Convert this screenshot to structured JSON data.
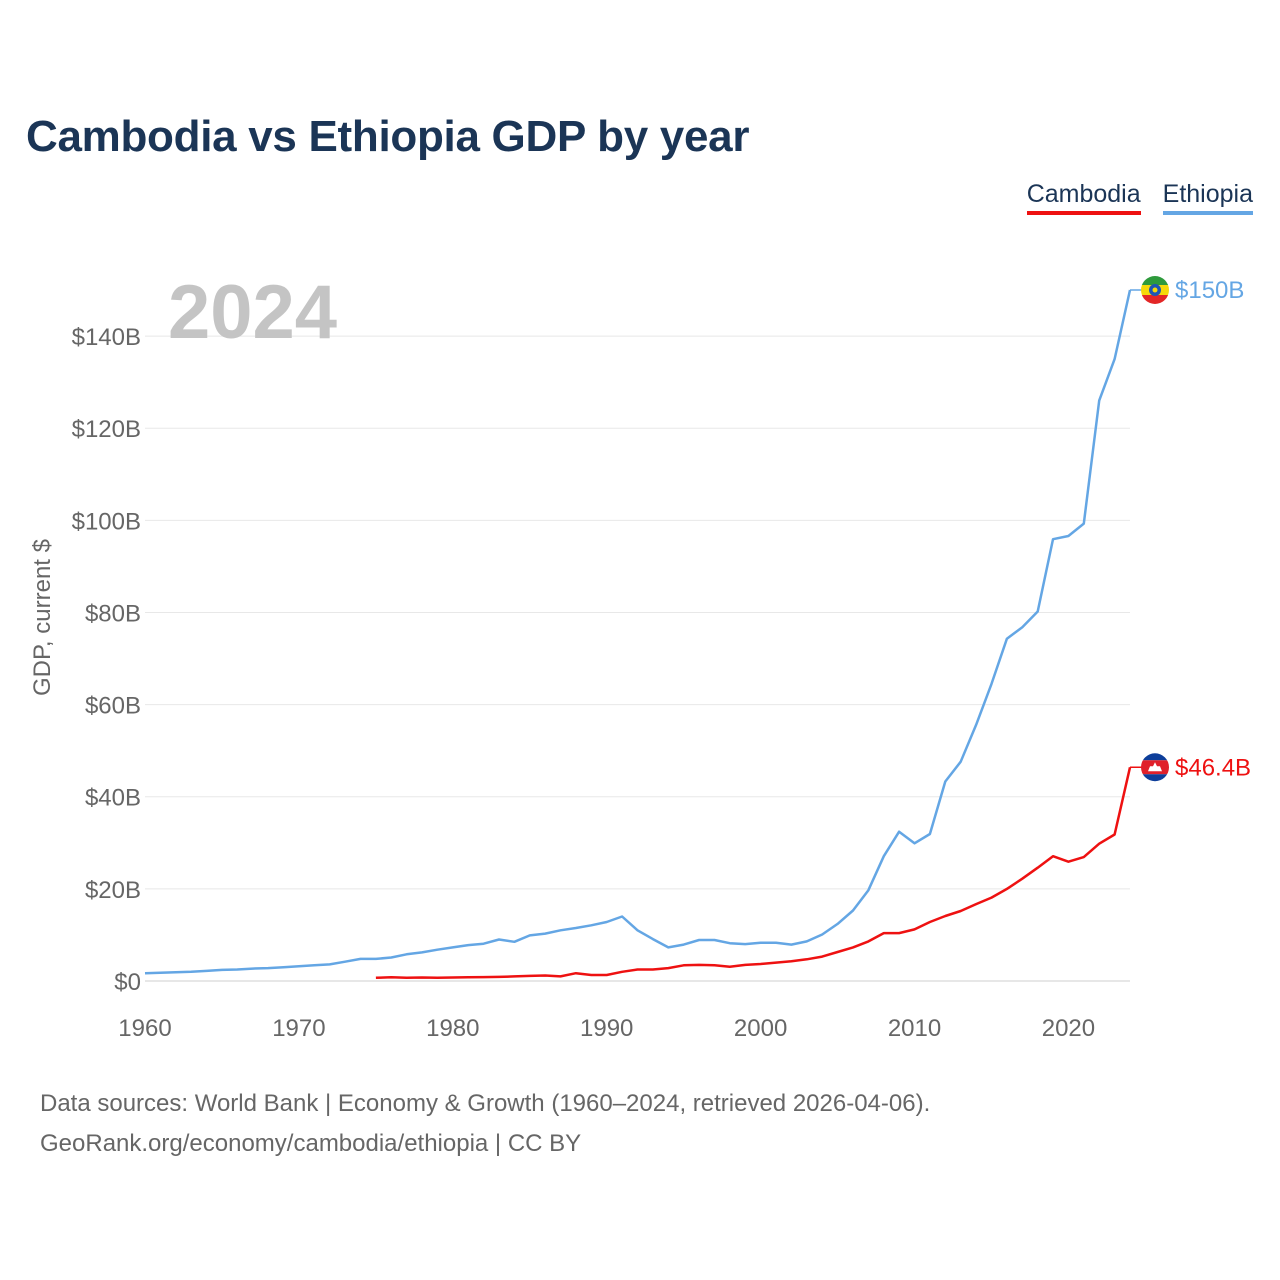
{
  "title": "Cambodia vs Ethiopia GDP by year",
  "legend": [
    {
      "label": "Cambodia",
      "color": "#ee1111"
    },
    {
      "label": "Ethiopia",
      "color": "#64a6e4"
    }
  ],
  "footer": {
    "line1": "Data sources: World Bank | Economy & Growth (1960–2024, retrieved 2026-04-06).",
    "line2": "GeoRank.org/economy/cambodia/ethiopia | CC BY"
  },
  "chart_data": {
    "type": "line",
    "title": "Cambodia vs Ethiopia GDP by year",
    "year_label": "2024",
    "ylabel": "GDP, current $",
    "xlabel": "",
    "xlim": [
      1960,
      2024
    ],
    "ylim": [
      0,
      150
    ],
    "y_unit": "billion US$",
    "x_ticks": [
      1960,
      1970,
      1980,
      1990,
      2000,
      2010,
      2020
    ],
    "y_ticks": [
      0,
      20,
      40,
      60,
      80,
      100,
      120,
      140
    ],
    "y_tick_labels": [
      "$0",
      "$20B",
      "$40B",
      "$60B",
      "$80B",
      "$100B",
      "$120B",
      "$140B"
    ],
    "grid": true,
    "legend_position": "top-right",
    "series": [
      {
        "name": "Ethiopia",
        "color": "#64a6e4",
        "end_label": "$150B",
        "flag_icon": "ethiopia-flag-icon",
        "x": [
          1960,
          1961,
          1962,
          1963,
          1964,
          1965,
          1966,
          1967,
          1968,
          1969,
          1970,
          1971,
          1972,
          1973,
          1974,
          1975,
          1976,
          1977,
          1978,
          1979,
          1980,
          1981,
          1982,
          1983,
          1984,
          1985,
          1986,
          1987,
          1988,
          1989,
          1990,
          1991,
          1992,
          1993,
          1994,
          1995,
          1996,
          1997,
          1998,
          1999,
          2000,
          2001,
          2002,
          2003,
          2004,
          2005,
          2006,
          2007,
          2008,
          2009,
          2010,
          2011,
          2012,
          2013,
          2014,
          2015,
          2016,
          2017,
          2018,
          2019,
          2020,
          2021,
          2022,
          2023,
          2024
        ],
        "values": [
          1.7,
          1.8,
          1.9,
          2.0,
          2.2,
          2.4,
          2.5,
          2.7,
          2.8,
          3.0,
          3.2,
          3.4,
          3.6,
          4.2,
          4.8,
          4.8,
          5.1,
          5.8,
          6.2,
          6.8,
          7.3,
          7.8,
          8.1,
          9.0,
          8.5,
          9.9,
          10.3,
          11.0,
          11.5,
          12.1,
          12.8,
          14.0,
          11.0,
          9.1,
          7.3,
          7.9,
          8.9,
          8.9,
          8.2,
          8.0,
          8.3,
          8.3,
          7.9,
          8.6,
          10.1,
          12.4,
          15.3,
          19.7,
          27.1,
          32.4,
          29.9,
          31.9,
          43.3,
          47.6,
          55.6,
          64.5,
          74.3,
          76.8,
          80.2,
          95.9,
          96.6,
          99.3,
          126.0,
          135.0,
          150.0
        ]
      },
      {
        "name": "Cambodia",
        "color": "#ee1111",
        "end_label": "$46.4B",
        "flag_icon": "cambodia-flag-icon",
        "x": [
          1975,
          1976,
          1977,
          1978,
          1979,
          1980,
          1981,
          1982,
          1983,
          1984,
          1985,
          1986,
          1987,
          1988,
          1989,
          1990,
          1991,
          1992,
          1993,
          1994,
          1995,
          1996,
          1997,
          1998,
          1999,
          2000,
          2001,
          2002,
          2003,
          2004,
          2005,
          2006,
          2007,
          2008,
          2009,
          2010,
          2011,
          2012,
          2013,
          2014,
          2015,
          2016,
          2017,
          2018,
          2019,
          2020,
          2021,
          2022,
          2023,
          2024
        ],
        "values": [
          0.7,
          0.8,
          0.7,
          0.75,
          0.7,
          0.75,
          0.8,
          0.85,
          0.9,
          1.0,
          1.1,
          1.2,
          1.0,
          1.7,
          1.3,
          1.3,
          2.0,
          2.5,
          2.5,
          2.8,
          3.4,
          3.5,
          3.4,
          3.1,
          3.5,
          3.7,
          4.0,
          4.3,
          4.7,
          5.3,
          6.3,
          7.3,
          8.6,
          10.4,
          10.4,
          11.2,
          12.8,
          14.1,
          15.2,
          16.7,
          18.1,
          20.0,
          22.2,
          24.6,
          27.1,
          25.9,
          26.9,
          29.8,
          31.8,
          46.4
        ]
      }
    ]
  }
}
